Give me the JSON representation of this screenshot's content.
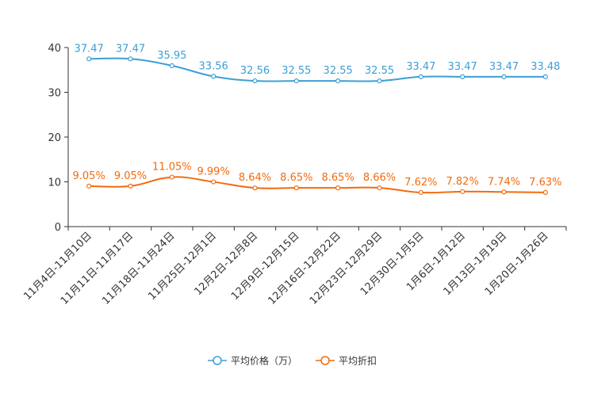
{
  "chart_data": {
    "type": "line",
    "categories": [
      "11月4日-11月10日",
      "11月11日-11月17日",
      "11月18日-11月24日",
      "11月25日-12月1日",
      "12月2日-12月8日",
      "12月9日-12月15日",
      "12月16日-12月22日",
      "12月23日-12月29日",
      "12月30日-1月5日",
      "1月6日-1月12日",
      "1月13日-1月19日",
      "1月20日-1月26日"
    ],
    "series": [
      {
        "name": "平均价格（万）",
        "color": "#3d9fd4",
        "values": [
          37.47,
          37.47,
          35.95,
          33.56,
          32.56,
          32.55,
          32.55,
          32.55,
          33.47,
          33.47,
          33.47,
          33.48
        ],
        "labels": [
          "37.47",
          "37.47",
          "35.95",
          "33.56",
          "32.56",
          "32.55",
          "32.55",
          "32.55",
          "33.47",
          "33.47",
          "33.47",
          "33.48"
        ]
      },
      {
        "name": "平均折扣",
        "color": "#f26b0f",
        "values": [
          9.05,
          9.05,
          11.05,
          9.99,
          8.64,
          8.65,
          8.65,
          8.66,
          7.62,
          7.82,
          7.74,
          7.63
        ],
        "labels": [
          "9.05%",
          "9.05%",
          "11.05%",
          "9.99%",
          "8.64%",
          "8.65%",
          "8.65%",
          "8.66%",
          "7.62%",
          "7.82%",
          "7.74%",
          "7.63%"
        ]
      }
    ],
    "y_ticks": [
      "0",
      "10",
      "20",
      "30",
      "40"
    ],
    "ylim": [
      0,
      40
    ],
    "legend_position": "bottom-center",
    "grid": false
  }
}
